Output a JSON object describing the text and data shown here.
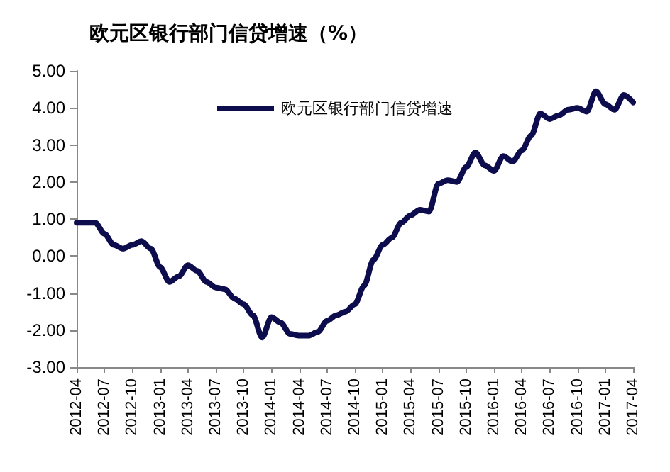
{
  "chart_data": {
    "type": "line",
    "title": "欧元区银行部门信贷增速（%）",
    "categories": [
      "2012-04",
      null,
      null,
      "2012-07",
      null,
      null,
      "2012-10",
      null,
      null,
      "2013-01",
      null,
      null,
      "2013-04",
      null,
      null,
      "2013-07",
      null,
      null,
      "2013-10",
      null,
      null,
      "2014-01",
      null,
      null,
      "2014-04",
      null,
      null,
      "2014-07",
      null,
      null,
      "2014-10",
      null,
      null,
      "2015-01",
      null,
      null,
      "2015-04",
      null,
      null,
      "2015-07",
      null,
      null,
      "2015-10",
      null,
      null,
      "2016-01",
      null,
      null,
      "2016-04",
      null,
      null,
      "2016-07",
      null,
      null,
      "2016-10",
      null,
      null,
      "2017-01",
      null,
      null,
      "2017-04"
    ],
    "series": [
      {
        "name": "欧元区银行部门信贷增速",
        "color": "#0d0d4d",
        "values": [
          0.9,
          0.9,
          0.9,
          0.6,
          0.3,
          0.2,
          0.3,
          0.4,
          0.2,
          -0.3,
          -0.7,
          -0.55,
          -0.25,
          -0.4,
          -0.7,
          -0.85,
          -0.9,
          -1.15,
          -1.3,
          -1.6,
          -2.2,
          -1.65,
          -1.8,
          -2.1,
          -2.15,
          -2.15,
          -2.05,
          -1.75,
          -1.6,
          -1.5,
          -1.3,
          -0.8,
          -0.1,
          0.3,
          0.5,
          0.9,
          1.1,
          1.25,
          1.2,
          1.95,
          2.05,
          2.0,
          2.4,
          2.8,
          2.45,
          2.3,
          2.7,
          2.55,
          2.85,
          3.25,
          3.85,
          3.7,
          3.8,
          3.95,
          4.0,
          3.9,
          4.45,
          4.1,
          3.95,
          4.35,
          4.15
        ]
      }
    ],
    "ylim": [
      -3,
      5
    ],
    "yticks": [
      {
        "value": -3,
        "label": "-3.00"
      },
      {
        "value": -2,
        "label": "-2.00"
      },
      {
        "value": -1,
        "label": "-1.00"
      },
      {
        "value": 0,
        "label": "0.00"
      },
      {
        "value": 1,
        "label": "1.00"
      },
      {
        "value": 2,
        "label": "2.00"
      },
      {
        "value": 3,
        "label": "3.00"
      },
      {
        "value": 4,
        "label": "4.00"
      },
      {
        "value": 5,
        "label": "5.00"
      }
    ],
    "grid": false,
    "legend": "top",
    "marker": "none",
    "line_style": "solid"
  }
}
